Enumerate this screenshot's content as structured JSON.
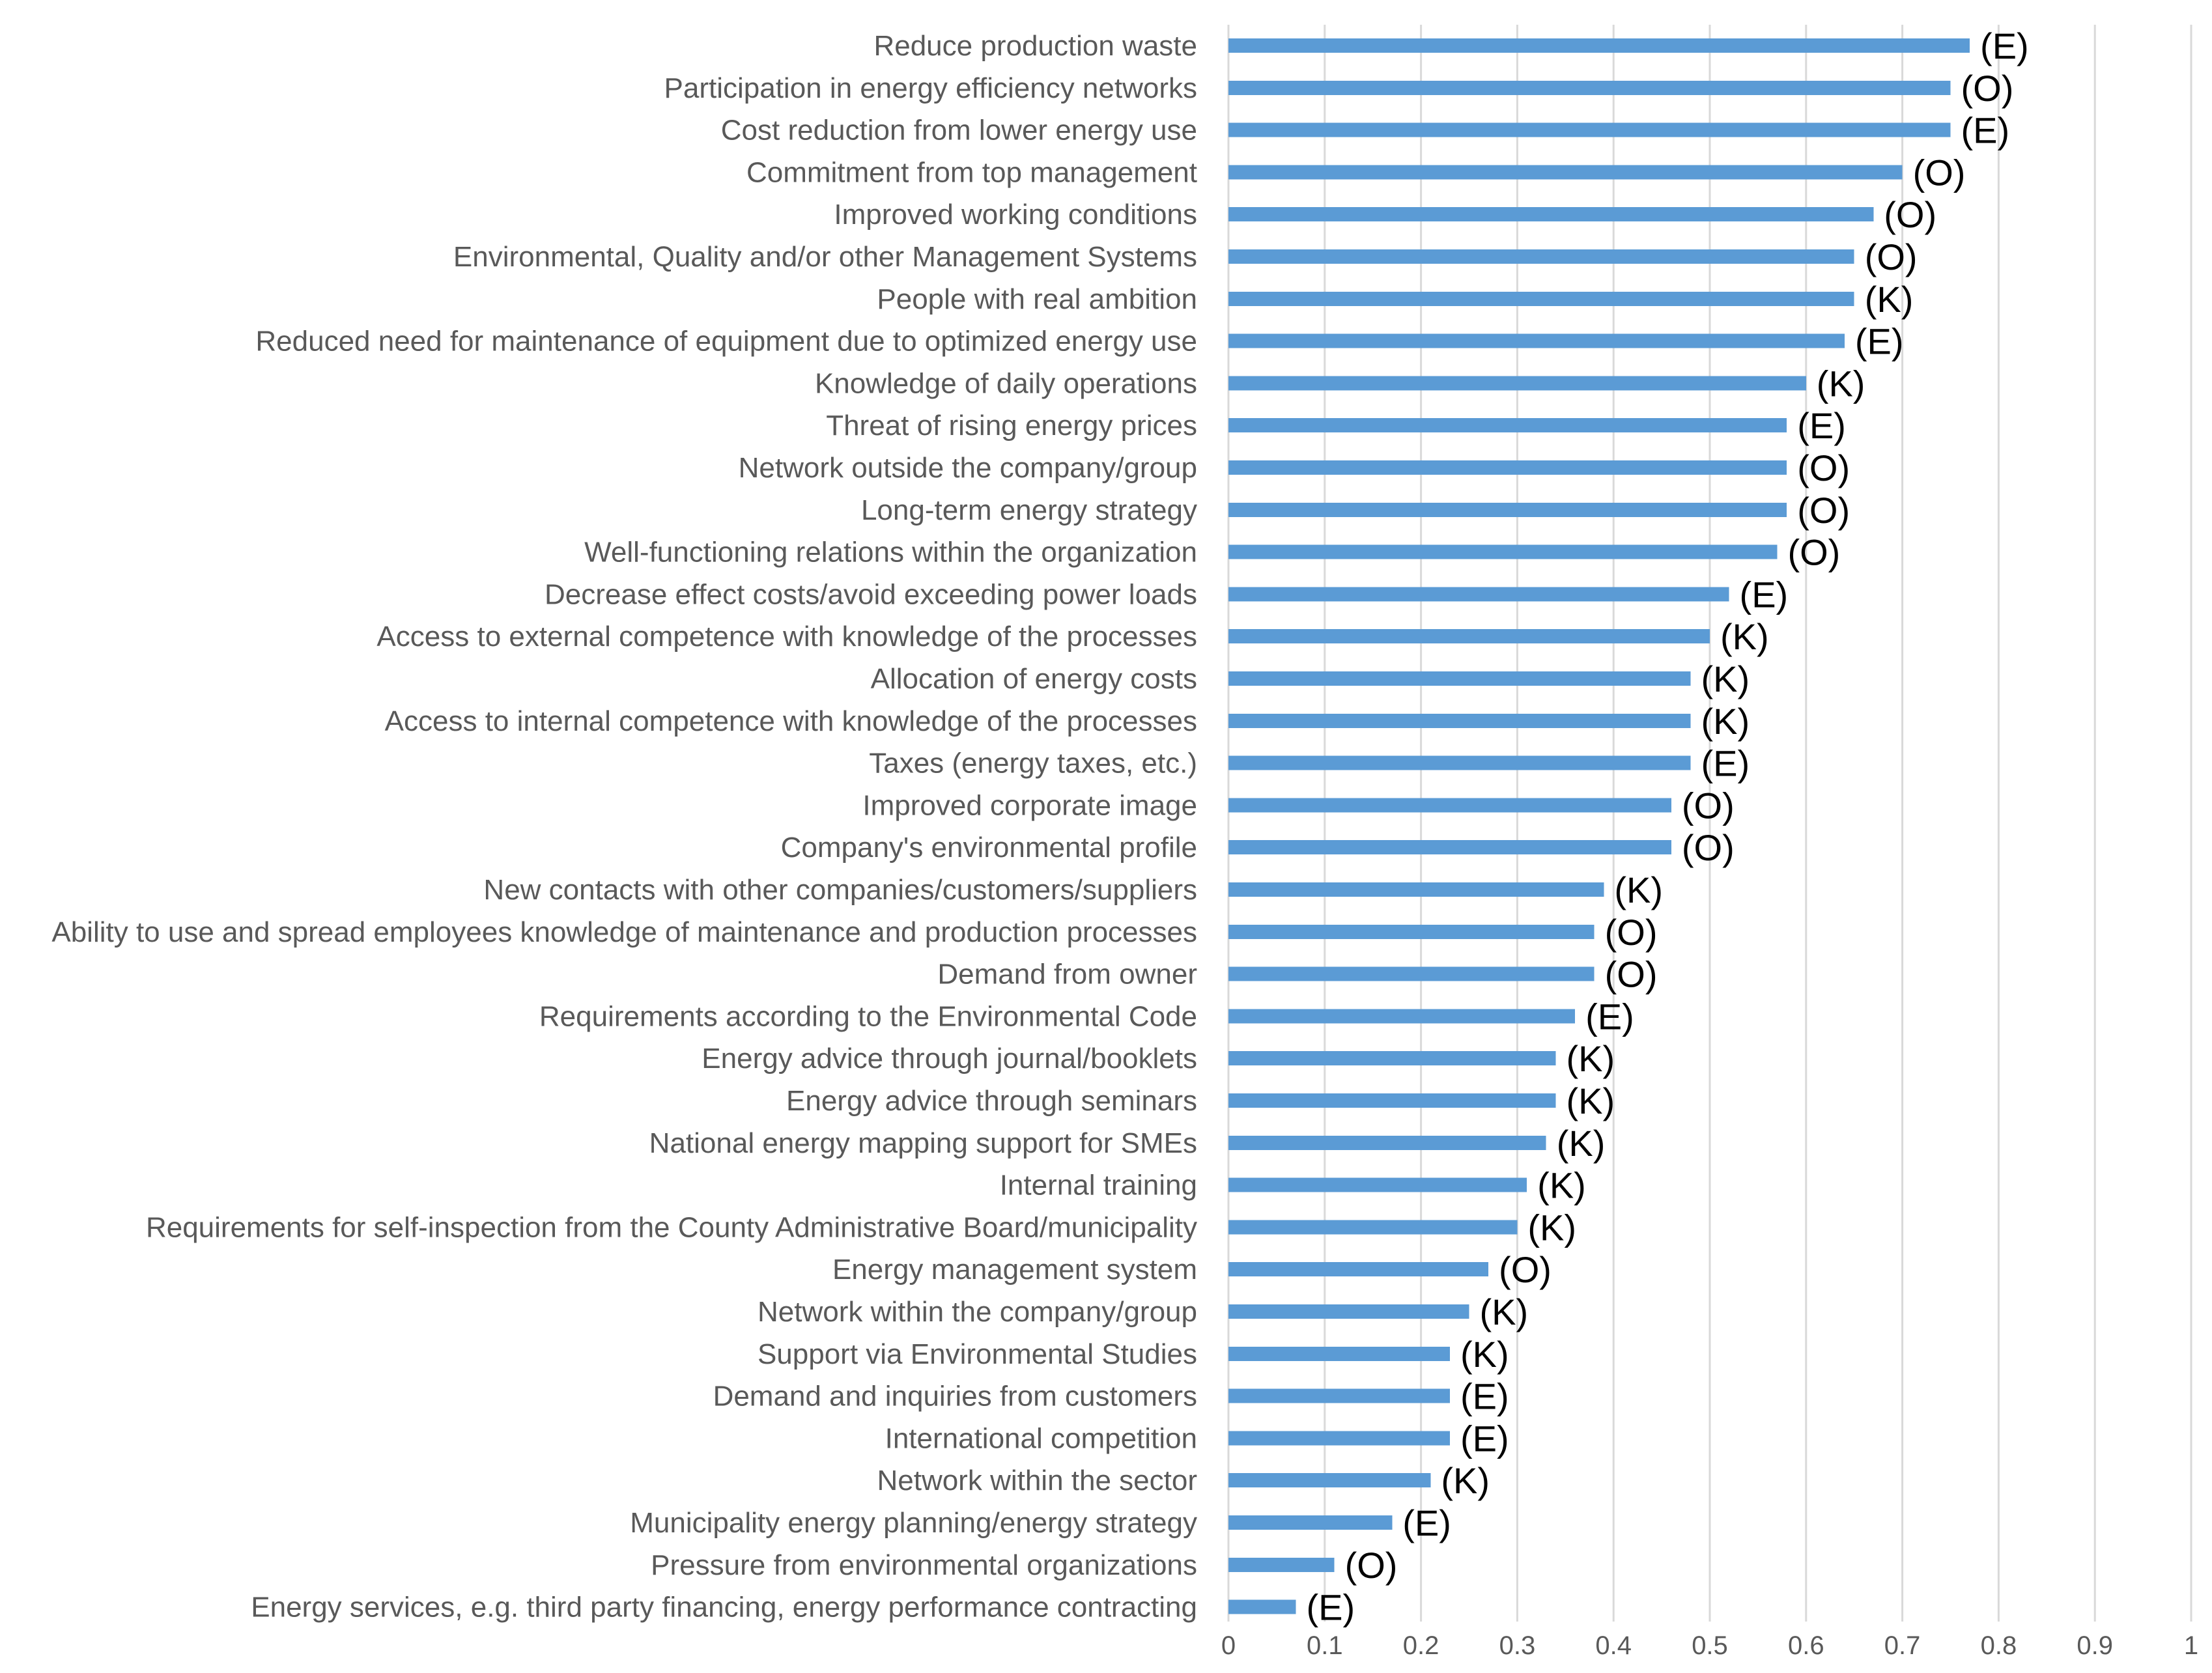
{
  "chart_data": {
    "type": "bar",
    "orientation": "horizontal",
    "title": "",
    "xlabel": "",
    "ylabel": "",
    "xlim": [
      0,
      1
    ],
    "x_ticks": [
      0,
      0.1,
      0.2,
      0.3,
      0.4,
      0.5,
      0.6,
      0.7,
      0.8,
      0.9,
      1
    ],
    "x_tick_labels": [
      "0",
      "0.1",
      "0.2",
      "0.3",
      "0.4",
      "0.5",
      "0.6",
      "0.7",
      "0.8",
      "0.9",
      "1"
    ],
    "grid": "vertical",
    "legend": "none",
    "bar_color": "#5b9bd5",
    "categories": [
      "Reduce production waste",
      "Participation in energy efficiency networks",
      "Cost reduction from lower energy use",
      "Commitment from top management",
      "Improved working conditions",
      "Environmental, Quality and/or other Management Systems",
      "People with real ambition",
      "Reduced need for maintenance of equipment due to optimized energy use",
      "Knowledge of daily operations",
      "Threat of rising energy prices",
      "Network outside the company/group",
      "Long-term energy strategy",
      "Well-functioning relations within the organization",
      "Decrease effect costs/avoid exceeding power loads",
      "Access to external competence with knowledge of the processes",
      "Allocation of energy costs",
      "Access to internal competence with knowledge of the processes",
      "Taxes (energy taxes, etc.)",
      "Improved corporate image",
      "Company's environmental profile",
      "New contacts with other companies/customers/suppliers",
      "Ability to use and spread employees knowledge of maintenance and production processes",
      "Demand from owner",
      "Requirements according to the Environmental Code",
      "Energy advice through journal/booklets",
      "Energy advice through seminars",
      "National energy mapping support for SMEs",
      "Internal training",
      "Requirements for self-inspection from the County Administrative Board/municipality",
      "Energy management system",
      "Network within the company/group",
      "Support via Environmental Studies",
      "Demand and inquiries from customers",
      "International competition",
      "Network within the sector",
      "Municipality energy planning/energy strategy",
      "Pressure from environmental organizations",
      "Energy services, e.g. third party financing, energy performance contracting"
    ],
    "values": [
      0.77,
      0.75,
      0.75,
      0.7,
      0.67,
      0.65,
      0.65,
      0.64,
      0.6,
      0.58,
      0.58,
      0.58,
      0.57,
      0.52,
      0.5,
      0.48,
      0.48,
      0.48,
      0.46,
      0.46,
      0.39,
      0.38,
      0.38,
      0.36,
      0.34,
      0.34,
      0.33,
      0.31,
      0.3,
      0.27,
      0.25,
      0.23,
      0.23,
      0.23,
      0.21,
      0.17,
      0.11,
      0.07
    ],
    "annotations": [
      "(E)",
      "(O)",
      "(E)",
      "(O)",
      "(O)",
      "(O)",
      "(K)",
      "(E)",
      "(K)",
      "(E)",
      "(O)",
      "(O)",
      "(O)",
      "(E)",
      "(K)",
      "(K)",
      "(K)",
      "(E)",
      "(O)",
      "(O)",
      "(K)",
      "(O)",
      "(O)",
      "(E)",
      "(K)",
      "(K)",
      "(K)",
      "(K)",
      "(K)",
      "(O)",
      "(K)",
      "(K)",
      "(E)",
      "(E)",
      "(K)",
      "(E)",
      "(O)",
      "(E)"
    ]
  }
}
